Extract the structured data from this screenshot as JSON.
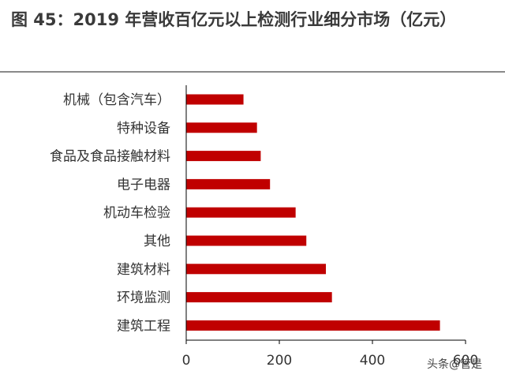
{
  "figure": {
    "title": "图 45：2019 年营收百亿元以上检测行业细分市场（亿元）"
  },
  "watermark": "头条@管是",
  "colors": {
    "bar": "#c00000",
    "axis": "#000000",
    "tick_text": "#333333",
    "title": "#3a3a3a"
  },
  "chart_data": {
    "type": "bar",
    "orientation": "horizontal",
    "categories": [
      "机械（包含汽车）",
      "特种设备",
      "食品及食品接触材料",
      "电子电器",
      "机动车检验",
      "其他",
      "建筑材料",
      "环境监测",
      "建筑工程"
    ],
    "values": [
      123,
      152,
      160,
      180,
      235,
      258,
      300,
      313,
      545
    ],
    "xlim": [
      0,
      600
    ],
    "xticks": [
      "0",
      "200",
      "400",
      "600"
    ],
    "xlabel": "",
    "ylabel": "",
    "grid": false,
    "legend": "none"
  }
}
